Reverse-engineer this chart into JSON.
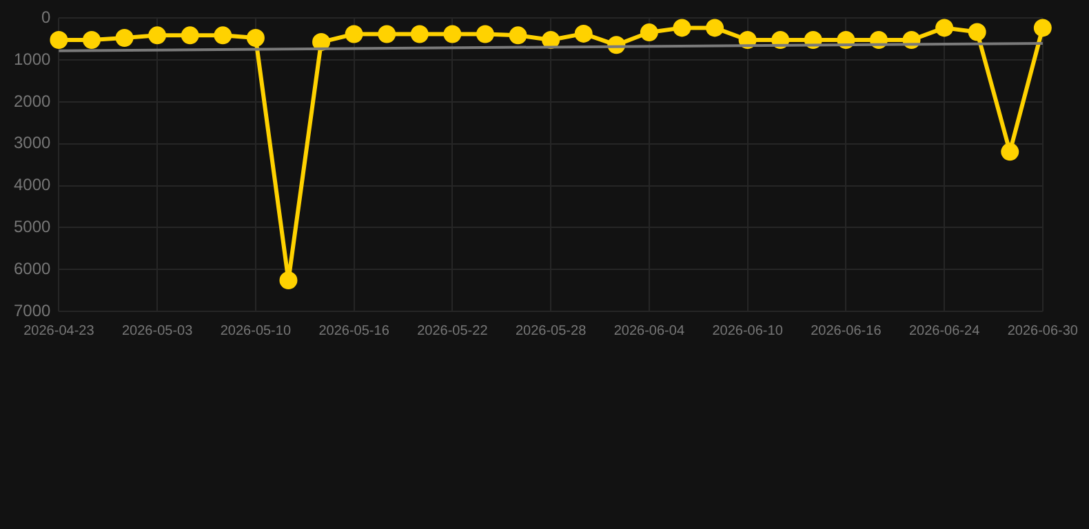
{
  "chart_data": {
    "type": "line",
    "categories": [
      "2026-04-23",
      null,
      null,
      "2026-05-03",
      null,
      null,
      "2026-05-10",
      null,
      null,
      "2026-05-16",
      null,
      null,
      "2026-05-22",
      null,
      null,
      "2026-05-28",
      null,
      null,
      "2026-06-04",
      null,
      null,
      "2026-06-10",
      null,
      null,
      "2026-06-16",
      null,
      null,
      "2026-06-24",
      null,
      null,
      "2026-06-30"
    ],
    "series": [
      {
        "color": "#ffd200",
        "marker": "circle",
        "values": [
          520,
          520,
          470,
          410,
          410,
          410,
          470,
          6260,
          570,
          380,
          380,
          380,
          380,
          380,
          410,
          520,
          370,
          640,
          340,
          230,
          230,
          520,
          520,
          520,
          520,
          520,
          520,
          230,
          330,
          3190,
          230
        ]
      },
      {
        "type": "line",
        "color": "#7a7a7a",
        "marker": "none",
        "values": [
          780,
          null,
          null,
          null,
          null,
          null,
          null,
          null,
          null,
          null,
          null,
          null,
          null,
          null,
          null,
          null,
          null,
          null,
          null,
          null,
          null,
          null,
          null,
          null,
          null,
          null,
          null,
          null,
          null,
          null,
          600
        ]
      }
    ],
    "ylim": [
      7000,
      0
    ],
    "yticks": [
      0,
      1000,
      2000,
      3000,
      4000,
      5000,
      6000,
      7000
    ],
    "grid": true,
    "legend": false
  }
}
